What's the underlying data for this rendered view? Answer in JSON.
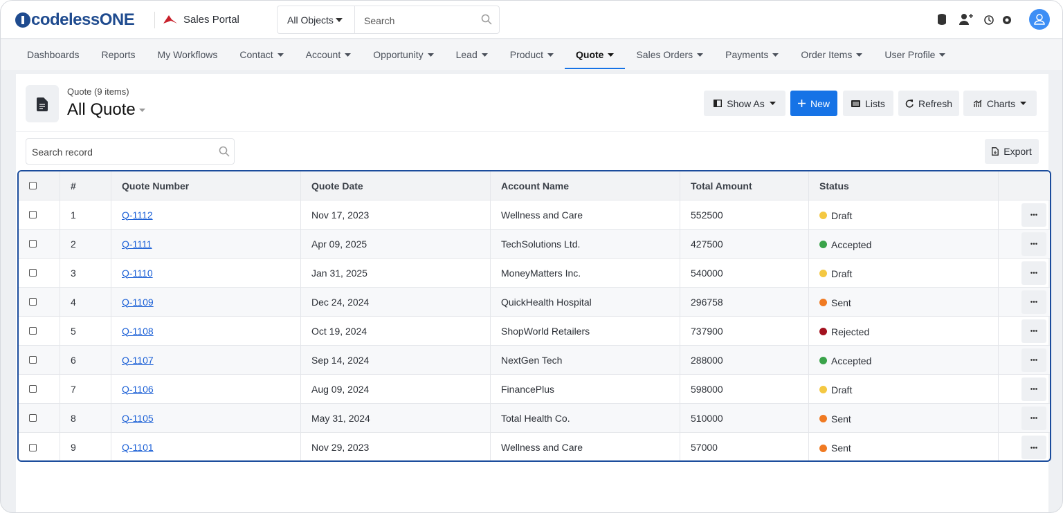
{
  "header": {
    "logo": "codelessONE",
    "app": "Sales Portal",
    "object_select": "All Objects",
    "search": "Search"
  },
  "nav": [
    {
      "label": "Dashboards",
      "dropdown": false
    },
    {
      "label": "Reports",
      "dropdown": false
    },
    {
      "label": "My Workflows",
      "dropdown": false
    },
    {
      "label": "Contact",
      "dropdown": true
    },
    {
      "label": "Account",
      "dropdown": true
    },
    {
      "label": "Opportunity",
      "dropdown": true
    },
    {
      "label": "Lead",
      "dropdown": true
    },
    {
      "label": "Product",
      "dropdown": true
    },
    {
      "label": "Quote",
      "dropdown": true,
      "active": true
    },
    {
      "label": "Sales Orders",
      "dropdown": true
    },
    {
      "label": "Payments",
      "dropdown": true
    },
    {
      "label": "Order Items",
      "dropdown": true
    },
    {
      "label": "User Profile",
      "dropdown": true
    }
  ],
  "page": {
    "subtitle": "Quote (9 items)",
    "title": "All Quote",
    "buttons": [
      "Show As",
      "New",
      "Lists",
      "Refresh",
      "Charts"
    ],
    "search_record": "Search record",
    "export": "Export"
  },
  "table": {
    "columns": [
      "#",
      "Quote Number",
      "Quote Date",
      "Account Name",
      "Total Amount",
      "Status"
    ],
    "rows": [
      [
        1,
        "Q-1112",
        "Nov 17, 2023",
        "Wellness and Care",
        552500,
        "Draft"
      ],
      [
        2,
        "Q-1111",
        "Apr 09, 2025",
        "TechSolutions Ltd.",
        427500,
        "Accepted"
      ],
      [
        3,
        "Q-1110",
        "Jan 31, 2025",
        "MoneyMatters Inc.",
        540000,
        "Draft"
      ],
      [
        4,
        "Q-1109",
        "Dec 24, 2024",
        "QuickHealth Hospital",
        296758,
        "Sent"
      ],
      [
        5,
        "Q-1108",
        "Oct 19, 2024",
        "ShopWorld Retailers",
        737900,
        "Rejected"
      ],
      [
        6,
        "Q-1107",
        "Sep 14, 2024",
        "NextGen Tech",
        288000,
        "Accepted"
      ],
      [
        7,
        "Q-1106",
        "Aug 09, 2024",
        "FinancePlus",
        598000,
        "Draft"
      ],
      [
        8,
        "Q-1105",
        "May 31, 2024",
        "Total Health Co.",
        510000,
        "Sent"
      ],
      [
        9,
        "Q-1101",
        "Nov 29, 2023",
        "Wellness and Care",
        57000,
        "Sent"
      ]
    ],
    "status_colors": {
      "Draft": "#f4c842",
      "Accepted": "#3aa34a",
      "Sent": "#f07a22",
      "Rejected": "#a3121f"
    }
  }
}
